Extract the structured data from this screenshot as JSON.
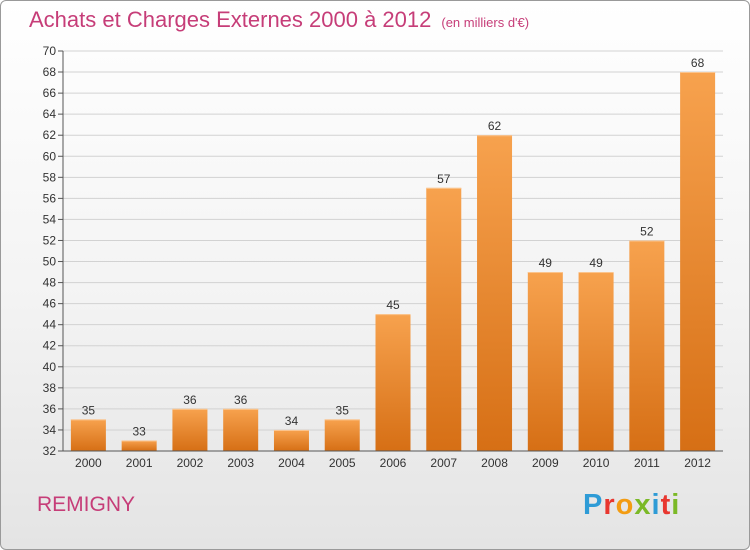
{
  "header": {
    "title": "Achats et Charges Externes 2000 à 2012",
    "unit": "(en milliers d'€)"
  },
  "footer": {
    "commune": "REMIGNY",
    "logo_letters": [
      {
        "char": "P",
        "color": "#2e9bd6"
      },
      {
        "char": "r",
        "color": "#e8372f"
      },
      {
        "char": "o",
        "color": "#f39c12"
      },
      {
        "char": "x",
        "color": "#7bb927"
      },
      {
        "char": "i",
        "color": "#2e9bd6"
      },
      {
        "char": "t",
        "color": "#e8372f"
      },
      {
        "char": "i",
        "color": "#7bb927"
      }
    ]
  },
  "chart_data": {
    "type": "bar",
    "title": "Achats et Charges Externes 2000 à 2012",
    "subtitle": "(en milliers d'€)",
    "xlabel": "",
    "ylabel": "",
    "categories": [
      "2000",
      "2001",
      "2002",
      "2003",
      "2004",
      "2005",
      "2006",
      "2007",
      "2008",
      "2009",
      "2010",
      "2011",
      "2012"
    ],
    "values": [
      35,
      33,
      36,
      36,
      34,
      35,
      45,
      57,
      62,
      49,
      49,
      52,
      68
    ],
    "ylim": [
      32,
      70
    ],
    "ytick_step": 2,
    "grid": true,
    "legend": "none",
    "bar_color_top": "#f7a24e",
    "bar_color_bottom": "#d66f15"
  }
}
